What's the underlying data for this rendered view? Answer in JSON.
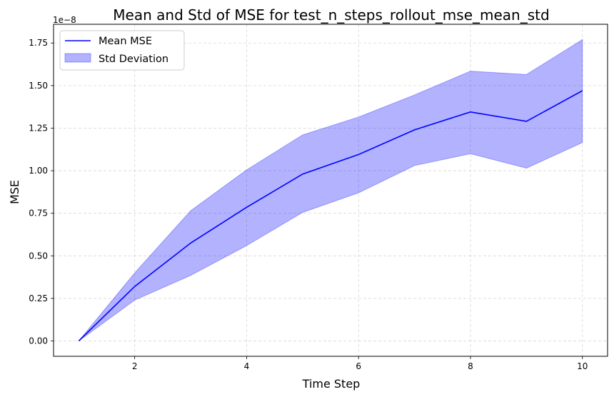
{
  "chart_data": {
    "type": "line",
    "title": "Mean and Std of MSE for test_n_steps_rollout_mse_mean_std",
    "xlabel": "Time Step",
    "ylabel": "MSE",
    "y_offset_text": "1e−8",
    "x": [
      1,
      2,
      3,
      4,
      5,
      6,
      7,
      8,
      9,
      10
    ],
    "xlim": [
      0.55,
      10.45
    ],
    "ylim": [
      -0.09,
      1.86
    ],
    "x_ticks": [
      2,
      4,
      6,
      8,
      10
    ],
    "x_tick_labels": [
      "2",
      "4",
      "6",
      "8",
      "10"
    ],
    "y_ticks": [
      0.0,
      0.25,
      0.5,
      0.75,
      1.0,
      1.25,
      1.5,
      1.75
    ],
    "y_tick_labels": [
      "0.00",
      "0.25",
      "0.50",
      "0.75",
      "1.00",
      "1.25",
      "1.50",
      "1.75"
    ],
    "series": [
      {
        "name": "Mean MSE",
        "values": [
          0.0,
          0.32,
          0.575,
          0.785,
          0.98,
          1.095,
          1.24,
          1.345,
          1.29,
          1.47
        ],
        "color": "#0000ff"
      },
      {
        "name": "Std Deviation",
        "upper": [
          0.0,
          0.4,
          0.765,
          1.005,
          1.21,
          1.315,
          1.445,
          1.585,
          1.565,
          1.77
        ],
        "lower": [
          0.0,
          0.24,
          0.385,
          0.56,
          0.755,
          0.87,
          1.03,
          1.1,
          1.015,
          1.165
        ],
        "color": "#0000ff",
        "fill_opacity": 0.3
      }
    ],
    "grid": true,
    "legend_position": "top-left"
  }
}
